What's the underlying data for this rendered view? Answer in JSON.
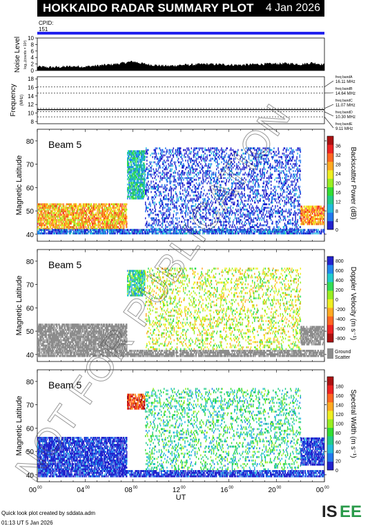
{
  "header": {
    "title": "HOKKAIDO RADAR SUMMARY PLOT",
    "date": "4 Jan 2026"
  },
  "cpid": {
    "label": "CPID:",
    "value": "151",
    "bar_color": "#2222ee"
  },
  "noise": {
    "ylabel": "Noise Level",
    "ylabel_sub": "log₁₀(counts × 10³)",
    "yticks": [
      "0",
      "2",
      "4",
      "6",
      "8",
      "10"
    ],
    "ylim": [
      0,
      10
    ]
  },
  "frequency": {
    "ylabel": "Frequency",
    "ylabel_sub": "(MHz)",
    "yticks": [
      "8",
      "10",
      "12",
      "14",
      "16",
      "18"
    ],
    "ylim": [
      7.5,
      18.5
    ],
    "bands": [
      {
        "label": "freq bandA",
        "value": "16.11 MHz",
        "mhz": 16.11
      },
      {
        "label": "freq bandB",
        "value": "14.64 MHz",
        "mhz": 14.64
      },
      {
        "label": "freq bandC",
        "value": "11.07 MHz",
        "mhz": 11.07
      },
      {
        "label": "freq bandD",
        "value": "10.30 MHz",
        "mhz": 10.3
      },
      {
        "label": "freq bandE",
        "value": "9.11 MHz",
        "mhz": 9.11
      }
    ],
    "active_mhz": 10.8
  },
  "panels": [
    {
      "beam": "Beam  5",
      "ylabel": "Magnetic Latitude",
      "yticks": [
        "40",
        "50",
        "60",
        "70",
        "80"
      ],
      "ylim": [
        37,
        85
      ],
      "colorbar_label": "Backscatter Power (dB)",
      "colorbar_ticks": [
        "0",
        "4",
        "8",
        "12",
        "16",
        "20",
        "24",
        "28",
        "32",
        "36"
      ],
      "colorbar_colors": [
        "#2222cc",
        "#2277ee",
        "#22bbdd",
        "#22cc88",
        "#33dd33",
        "#99ee22",
        "#eeee22",
        "#ffaa22",
        "#ff6622",
        "#ee2222",
        "#aa1111"
      ]
    },
    {
      "beam": "Beam  5",
      "ylabel": "Magnetic Latitude",
      "yticks": [
        "40",
        "50",
        "60",
        "70",
        "80"
      ],
      "ylim": [
        37,
        85
      ],
      "colorbar_label": "Doppler Velocity (m s⁻¹)",
      "colorbar_ticks": [
        "800",
        "600",
        "400",
        "200",
        "0",
        "-200",
        "-400",
        "-600",
        "-800"
      ],
      "colorbar_colors": [
        "#2222cc",
        "#2288ee",
        "#22cccc",
        "#33dd55",
        "#99ee22",
        "#eeee22",
        "#ffaa22",
        "#ff6622",
        "#ee2222",
        "#aa1111"
      ],
      "ground_scatter_label": "Ground Scatter",
      "ground_scatter_color": "#8c8c8c"
    },
    {
      "beam": "Beam  5",
      "ylabel": "Magnetic Latitude",
      "yticks": [
        "40",
        "50",
        "60",
        "70",
        "80"
      ],
      "ylim": [
        37,
        85
      ],
      "colorbar_label": "Spectral Width (m s⁻¹)",
      "colorbar_ticks": [
        "0",
        "20",
        "40",
        "60",
        "80",
        "100",
        "120",
        "140",
        "160",
        "180"
      ],
      "colorbar_colors": [
        "#2222cc",
        "#2277ee",
        "#22bbdd",
        "#22cc88",
        "#33dd33",
        "#99ee22",
        "#eeee22",
        "#ffaa22",
        "#ff6622",
        "#ee2222",
        "#aa1111"
      ]
    }
  ],
  "xaxis": {
    "label": "UT",
    "ticks": [
      {
        "h": "00",
        "m": "00"
      },
      {
        "h": "04",
        "m": "00"
      },
      {
        "h": "08",
        "m": "00"
      },
      {
        "h": "12",
        "m": "00"
      },
      {
        "h": "16",
        "m": "00"
      },
      {
        "h": "20",
        "m": "00"
      },
      {
        "h": "00",
        "m": "00"
      }
    ]
  },
  "watermark": "NOT FOR PUBLICATION",
  "footer": {
    "credit": "Quick look plot created by sddata.adm",
    "time": "01:13 UT  5 Jan 2026"
  },
  "logo": {
    "text_a": "IS",
    "text_b": "EE"
  },
  "chart_data": [
    {
      "type": "line",
      "title": "Noise Level",
      "ylabel": "Noise Level",
      "ylim": [
        0,
        10
      ],
      "x_unit": "UT hours",
      "x": [
        0,
        1,
        2,
        3,
        4,
        5,
        6,
        7,
        8,
        9,
        10,
        11,
        12,
        13,
        14,
        15,
        16,
        17,
        18,
        19,
        20,
        21,
        22,
        23,
        24
      ],
      "values": [
        1.2,
        1.0,
        1.1,
        1.3,
        1.2,
        1.5,
        1.8,
        2.2,
        2.8,
        2.0,
        1.6,
        1.4,
        1.7,
        1.8,
        2.0,
        1.9,
        1.8,
        1.7,
        1.9,
        2.0,
        2.1,
        2.2,
        1.9,
        2.4,
        1.8
      ]
    },
    {
      "type": "line",
      "title": "Frequency",
      "ylabel": "Frequency (MHz)",
      "ylim": [
        7.5,
        18.5
      ],
      "x": [
        0,
        24
      ],
      "values": [
        10.8,
        10.8
      ]
    },
    {
      "type": "heatmap",
      "title": "Backscatter Power",
      "ylabel": "Magnetic Latitude",
      "xlabel": "UT",
      "xlim": [
        0,
        24
      ],
      "ylim": [
        37,
        85
      ],
      "colorbar_range": [
        0,
        36
      ],
      "regions": [
        {
          "t0": 0,
          "t1": 7.5,
          "lat0": 42,
          "lat1": 53,
          "value": 24
        },
        {
          "t0": 0,
          "t1": 24,
          "lat0": 40,
          "lat1": 42,
          "value": 4
        },
        {
          "t0": 7.5,
          "t1": 9.0,
          "lat0": 55,
          "lat1": 76,
          "value": 10
        },
        {
          "t0": 9.0,
          "t1": 22.0,
          "lat0": 42,
          "lat1": 77,
          "value": 2
        },
        {
          "t0": 22.0,
          "t1": 24,
          "lat0": 44,
          "lat1": 52,
          "value": 26
        }
      ]
    },
    {
      "type": "heatmap",
      "title": "Doppler Velocity",
      "ylabel": "Magnetic Latitude",
      "xlabel": "UT",
      "xlim": [
        0,
        24
      ],
      "ylim": [
        37,
        85
      ],
      "colorbar_range": [
        -800,
        800
      ],
      "regions": [
        {
          "t0": 0,
          "t1": 7.5,
          "lat0": 42,
          "lat1": 53,
          "value": "ground scatter"
        },
        {
          "t0": 0,
          "t1": 24,
          "lat0": 39,
          "lat1": 42,
          "value": "ground scatter"
        },
        {
          "t0": 7.5,
          "t1": 9.0,
          "lat0": 65,
          "lat1": 76,
          "value": 300
        },
        {
          "t0": 9.0,
          "t1": 22.0,
          "lat0": 42,
          "lat1": 77,
          "value": 0
        },
        {
          "t0": 22.0,
          "t1": 24,
          "lat0": 44,
          "lat1": 52,
          "value": "ground scatter"
        }
      ]
    },
    {
      "type": "heatmap",
      "title": "Spectral Width",
      "ylabel": "Magnetic Latitude",
      "xlabel": "UT",
      "xlim": [
        0,
        24
      ],
      "ylim": [
        37,
        85
      ],
      "colorbar_range": [
        0,
        180
      ],
      "regions": [
        {
          "t0": 0,
          "t1": 7.5,
          "lat0": 42,
          "lat1": 56,
          "value": 5
        },
        {
          "t0": 0,
          "t1": 24,
          "lat0": 39,
          "lat1": 42,
          "value": 5
        },
        {
          "t0": 7.5,
          "t1": 9.0,
          "lat0": 68,
          "lat1": 75,
          "value": 150
        },
        {
          "t0": 9.0,
          "t1": 22.0,
          "lat0": 42,
          "lat1": 77,
          "value": 60
        },
        {
          "t0": 22.0,
          "t1": 24,
          "lat0": 44,
          "lat1": 56,
          "value": 5
        }
      ]
    }
  ]
}
